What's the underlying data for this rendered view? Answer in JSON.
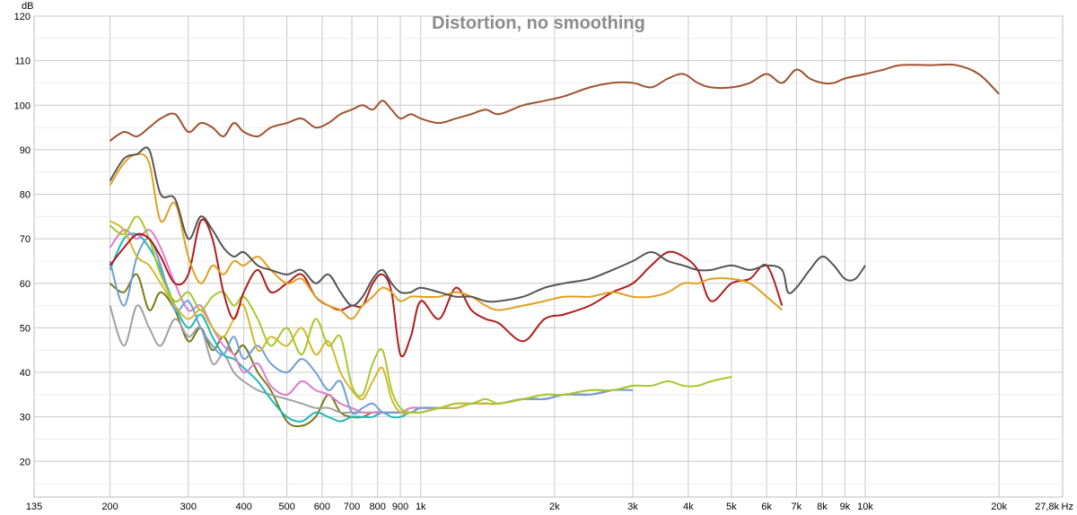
{
  "chart_data": {
    "type": "line",
    "title": "Distortion, no smoothing",
    "xscale": "log",
    "xlim": [
      135,
      27800
    ],
    "ylim": [
      12,
      120
    ],
    "y_unit_label": "dB",
    "x_unit_label": "Hz",
    "grid": true,
    "x_tick_labels": [
      {
        "value": 135,
        "label": "135"
      },
      {
        "value": 200,
        "label": "200"
      },
      {
        "value": 300,
        "label": "300"
      },
      {
        "value": 400,
        "label": "400"
      },
      {
        "value": 500,
        "label": "500"
      },
      {
        "value": 600,
        "label": "600"
      },
      {
        "value": 700,
        "label": "700"
      },
      {
        "value": 800,
        "label": "800"
      },
      {
        "value": 900,
        "label": "900"
      },
      {
        "value": 1000,
        "label": "1k"
      },
      {
        "value": 2000,
        "label": "2k"
      },
      {
        "value": 3000,
        "label": "3k"
      },
      {
        "value": 4000,
        "label": "4k"
      },
      {
        "value": 5000,
        "label": "5k"
      },
      {
        "value": 6000,
        "label": "6k"
      },
      {
        "value": 7000,
        "label": "7k"
      },
      {
        "value": 8000,
        "label": "8k"
      },
      {
        "value": 9000,
        "label": "9k"
      },
      {
        "value": 10000,
        "label": "10k"
      },
      {
        "value": 20000,
        "label": "20k"
      },
      {
        "value": 27800,
        "label": "27,8k"
      }
    ],
    "y_tick_labels": [
      {
        "value": 20,
        "label": "20"
      },
      {
        "value": 30,
        "label": "30"
      },
      {
        "value": 40,
        "label": "40"
      },
      {
        "value": 50,
        "label": "50"
      },
      {
        "value": 60,
        "label": "60"
      },
      {
        "value": 70,
        "label": "70"
      },
      {
        "value": 80,
        "label": "80"
      },
      {
        "value": 90,
        "label": "90"
      },
      {
        "value": 100,
        "label": "100"
      },
      {
        "value": 110,
        "label": "110"
      },
      {
        "value": 120,
        "label": "120"
      }
    ],
    "series": [
      {
        "color": "#a0522d",
        "x": [
          200,
          215,
          230,
          245,
          260,
          280,
          300,
          320,
          340,
          360,
          380,
          400,
          430,
          460,
          500,
          540,
          580,
          620,
          660,
          700,
          740,
          780,
          820,
          860,
          900,
          950,
          1000,
          1100,
          1200,
          1300,
          1400,
          1500,
          1700,
          1900,
          2100,
          2400,
          2700,
          3000,
          3300,
          3600,
          3900,
          4200,
          4500,
          5000,
          5500,
          6000,
          6500,
          7000,
          7500,
          8000,
          8500,
          9000,
          10000,
          11000,
          12000,
          14000,
          16000,
          18000,
          20000
        ],
        "y": [
          92,
          94,
          93,
          95,
          97,
          98,
          94,
          96,
          95,
          93,
          96,
          94,
          93,
          95,
          96,
          97,
          95,
          96,
          98,
          99,
          100,
          99,
          101,
          99,
          97,
          98,
          97,
          96,
          97,
          98,
          99,
          98,
          100,
          101,
          102,
          104,
          105,
          105,
          104,
          106,
          107,
          105,
          104,
          104,
          105,
          107,
          105,
          108,
          106,
          105,
          105,
          106,
          107,
          108,
          109,
          109,
          109,
          107,
          102.5
        ]
      },
      {
        "color": "#555555",
        "x": [
          200,
          215,
          230,
          245,
          260,
          280,
          300,
          320,
          340,
          360,
          380,
          400,
          430,
          460,
          500,
          540,
          580,
          620,
          660,
          700,
          740,
          780,
          820,
          860,
          900,
          950,
          1000,
          1100,
          1200,
          1300,
          1400,
          1500,
          1700,
          1900,
          2100,
          2400,
          2700,
          3000,
          3300,
          3600,
          3900,
          4200,
          4500,
          5000,
          5500,
          6000,
          6500,
          6700,
          7000,
          7500,
          8000,
          8500,
          9000,
          9500,
          10000
        ],
        "y": [
          83,
          88,
          89,
          90,
          80,
          79,
          70,
          75,
          72,
          68,
          66,
          67,
          64,
          63,
          62,
          63,
          60,
          62,
          58,
          55,
          57,
          61,
          63,
          60,
          58,
          58,
          59,
          58,
          57,
          57,
          56,
          56,
          57,
          59,
          60,
          61,
          63,
          65,
          67,
          65,
          64,
          63,
          63,
          64,
          63,
          64,
          63,
          58,
          59,
          63,
          66,
          64,
          61,
          61,
          64
        ]
      },
      {
        "color": "#e0a020",
        "x": [
          200,
          215,
          230,
          245,
          260,
          280,
          300,
          320,
          340,
          360,
          380,
          400,
          430,
          460,
          500,
          540,
          580,
          620,
          660,
          700,
          740,
          780,
          820,
          860,
          900,
          950,
          1000,
          1100,
          1200,
          1300,
          1400,
          1500,
          1700,
          1900,
          2100,
          2400,
          2700,
          3000,
          3300,
          3600,
          3900,
          4200,
          4500,
          5000,
          5500,
          6000,
          6500
        ],
        "y": [
          82,
          87,
          89,
          87,
          74,
          78,
          66,
          60,
          64,
          62,
          65,
          64,
          66,
          63,
          60,
          61,
          57,
          55,
          54,
          52,
          55,
          57,
          59,
          58,
          56,
          57,
          57,
          57,
          58,
          57,
          55,
          54,
          55,
          56,
          57,
          57,
          58,
          57,
          57,
          58,
          60,
          60,
          61,
          61,
          60,
          57,
          54
        ]
      },
      {
        "color": "#b01c1c",
        "x": [
          200,
          215,
          230,
          245,
          260,
          280,
          300,
          320,
          340,
          360,
          380,
          400,
          430,
          460,
          500,
          540,
          580,
          620,
          660,
          700,
          740,
          780,
          820,
          860,
          900,
          950,
          1000,
          1100,
          1200,
          1300,
          1400,
          1500,
          1700,
          1900,
          2100,
          2400,
          2700,
          3000,
          3300,
          3600,
          3900,
          4200,
          4500,
          5000,
          5500,
          6000,
          6500
        ],
        "y": [
          64,
          68,
          71,
          70,
          66,
          60,
          62,
          74,
          70,
          58,
          52,
          58,
          63,
          58,
          60,
          62,
          57,
          55,
          54,
          55,
          55,
          60,
          62,
          58,
          44,
          48,
          56,
          52,
          59,
          54,
          52,
          51,
          47,
          52,
          53,
          55,
          58,
          60,
          64,
          67,
          66,
          63,
          56,
          60,
          61,
          64,
          55
        ]
      },
      {
        "color": "#a8c82c",
        "x": [
          200,
          215,
          230,
          245,
          260,
          280,
          300,
          320,
          340,
          360,
          380,
          400,
          430,
          460,
          500,
          540,
          580,
          620,
          660,
          700,
          740,
          780,
          820,
          860,
          900,
          950,
          1000,
          1100,
          1200,
          1300,
          1400,
          1500,
          1700,
          1900,
          2100,
          2400,
          2700,
          3000,
          3300,
          3600,
          3900,
          4200,
          4500,
          5000
        ],
        "y": [
          73,
          71,
          75,
          70,
          62,
          56,
          58,
          54,
          57,
          58,
          55,
          57,
          52,
          46,
          50,
          44,
          52,
          46,
          48,
          37,
          35,
          42,
          45,
          36,
          32,
          31,
          31,
          32,
          33,
          33,
          34,
          33,
          34,
          35,
          35,
          36,
          36,
          37,
          37,
          38,
          37,
          37,
          38,
          39
        ]
      },
      {
        "color": "#d4b830",
        "x": [
          200,
          215,
          230,
          245,
          260,
          280,
          300,
          320,
          340,
          360,
          380,
          400,
          430,
          460,
          500,
          540,
          580,
          620,
          660,
          700,
          740,
          780,
          820,
          860,
          900,
          950,
          1000,
          1100,
          1200,
          1300,
          1400,
          1500,
          1700,
          1900,
          2100,
          2400,
          2700,
          3000
        ],
        "y": [
          74,
          72,
          66,
          64,
          60,
          55,
          52,
          54,
          50,
          48,
          52,
          55,
          45,
          48,
          46,
          50,
          44,
          47,
          40,
          36,
          34,
          38,
          41,
          34,
          31,
          31,
          31,
          32,
          32,
          33,
          33,
          33,
          34,
          35,
          35,
          36,
          36,
          37
        ]
      },
      {
        "color": "#6f9fd8",
        "x": [
          200,
          215,
          230,
          245,
          260,
          280,
          300,
          320,
          340,
          360,
          380,
          400,
          430,
          460,
          500,
          540,
          580,
          620,
          660,
          700,
          740,
          780,
          820,
          860,
          900,
          950,
          1000,
          1100,
          1200,
          1300,
          1400,
          1500,
          1700,
          1900,
          2100,
          2400,
          2700,
          3000
        ],
        "y": [
          65,
          55,
          66,
          70,
          64,
          54,
          56,
          50,
          46,
          44,
          48,
          43,
          46,
          42,
          40,
          43,
          40,
          36,
          38,
          31,
          32,
          33,
          31,
          31,
          31,
          31,
          32,
          32,
          32,
          33,
          33,
          33,
          34,
          34,
          35,
          35,
          36,
          36
        ]
      },
      {
        "color": "#e07ad0",
        "x": [
          200,
          215,
          230,
          245,
          260,
          280,
          300,
          320,
          340,
          360,
          380,
          400,
          430,
          460,
          500,
          540,
          580,
          620,
          660,
          700,
          740,
          780,
          820,
          860,
          900,
          950,
          1000,
          1100,
          1200,
          1300,
          1400,
          1500,
          1700,
          1900,
          2100,
          2400,
          2700
        ],
        "y": [
          68,
          72,
          70,
          72,
          68,
          60,
          54,
          55,
          50,
          46,
          44,
          40,
          42,
          37,
          35,
          38,
          36,
          35,
          33,
          32,
          31,
          31,
          31,
          31,
          31,
          32,
          32,
          32,
          33,
          33,
          33,
          33,
          34,
          34,
          35,
          35,
          36
        ]
      },
      {
        "color": "#20b8b8",
        "x": [
          200,
          215,
          230,
          245,
          260,
          280,
          300,
          320,
          340,
          360,
          380,
          400,
          430,
          460,
          500,
          540,
          580,
          620,
          660,
          700,
          740,
          780,
          820,
          860,
          900,
          950,
          1000,
          1100,
          1200,
          1300,
          1400,
          1500,
          1700,
          1900,
          2100,
          2400,
          2700
        ],
        "y": [
          63,
          70,
          71,
          68,
          63,
          55,
          50,
          53,
          48,
          44,
          43,
          41,
          38,
          34,
          30,
          29,
          31,
          30,
          29,
          30,
          30,
          30,
          31,
          30,
          30,
          31,
          31,
          32,
          32,
          33,
          33,
          33,
          34,
          34,
          35,
          35,
          36
        ]
      },
      {
        "color": "#a0a0a0",
        "x": [
          200,
          215,
          230,
          245,
          260,
          280,
          300,
          320,
          340,
          360,
          380,
          400,
          430,
          460,
          500,
          540,
          580,
          620,
          660,
          700,
          740,
          780,
          820,
          860,
          900,
          950,
          1000,
          1100,
          1200,
          1300,
          1400,
          1500,
          1700,
          1900,
          2100,
          2400
        ],
        "y": [
          55,
          46,
          55,
          50,
          46,
          52,
          48,
          50,
          42,
          44,
          40,
          38,
          36,
          35,
          34,
          33,
          32,
          32,
          31,
          31,
          31,
          31,
          31,
          31,
          31,
          32,
          32,
          32,
          32,
          33,
          33,
          33,
          34,
          34,
          35,
          35
        ]
      },
      {
        "color": "#7a7a1c",
        "x": [
          200,
          215,
          230,
          245,
          260,
          280,
          300,
          320,
          340,
          360,
          380,
          400,
          430,
          460,
          500,
          540,
          580,
          620,
          660,
          700,
          740,
          780,
          820,
          860,
          900,
          950,
          1000,
          1100,
          1200,
          1300,
          1400,
          1500,
          1700,
          1900,
          2100,
          2400
        ],
        "y": [
          60,
          58,
          62,
          54,
          58,
          54,
          47,
          50,
          45,
          48,
          44,
          46,
          40,
          36,
          29,
          28,
          30,
          35,
          31,
          30,
          30,
          31,
          31,
          31,
          31,
          31,
          32,
          32,
          32,
          33,
          33,
          33,
          34,
          34,
          35,
          35
        ]
      }
    ]
  }
}
